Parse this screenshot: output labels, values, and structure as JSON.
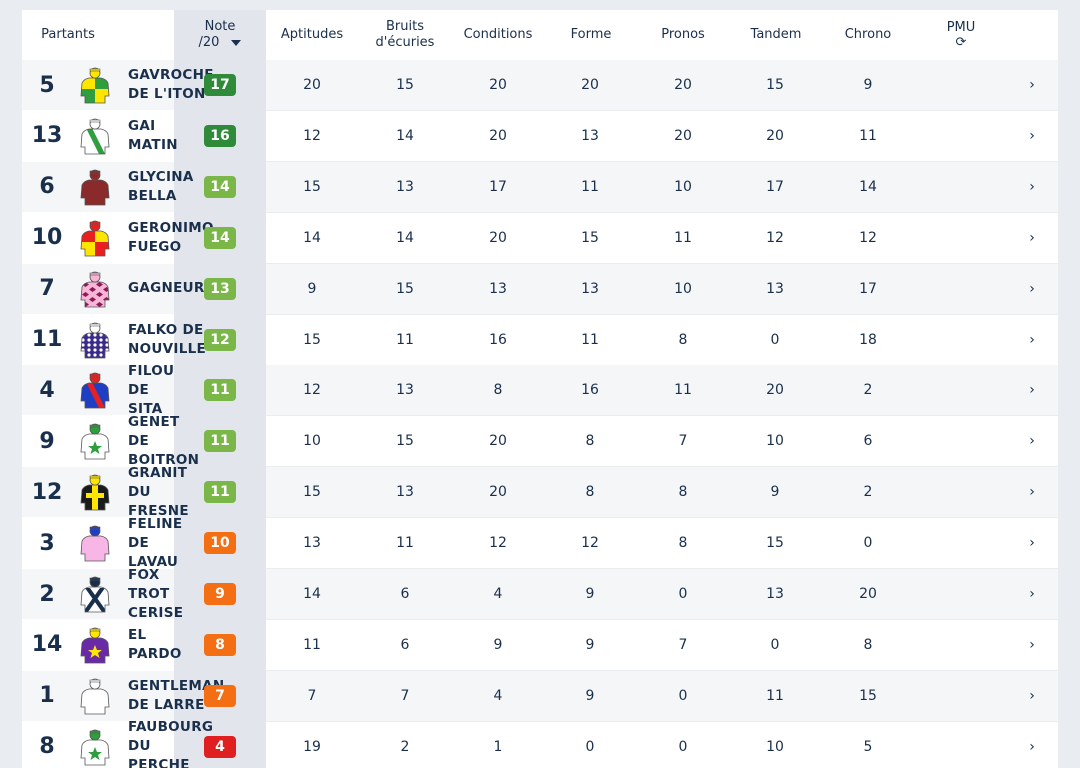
{
  "header": {
    "partants": "Partants",
    "note_line1": "Note",
    "note_line2": "/20",
    "aptitudes": "Aptitudes",
    "bruits_line1": "Bruits",
    "bruits_line2": "d'écuries",
    "conditions": "Conditions",
    "forme": "Forme",
    "pronos": "Pronos",
    "tandem": "Tandem",
    "chrono": "Chrono",
    "pmu": "PMU",
    "refresh_glyph": "⟳",
    "sort_icon": "caret-down-icon"
  },
  "colors": {
    "dark_green": "#2f8a3a",
    "light_green": "#7ab648",
    "orange": "#f46e14",
    "red": "#e02020"
  },
  "chevron_glyph": "›",
  "rows": [
    {
      "num": "5",
      "name": [
        "GAVROCHE",
        "DE L'ITON"
      ],
      "note": "17",
      "note_color": "#2f8a3a",
      "silk": {
        "type": "quarter",
        "c1": "#ffe600",
        "c2": "#2e9e3e",
        "cap": "#ffe600"
      },
      "aptitudes": "20",
      "bruits": "15",
      "conditions": "20",
      "forme": "20",
      "pronos": "20",
      "tandem": "15",
      "chrono": "9"
    },
    {
      "num": "13",
      "name": [
        "GAI",
        "MATIN"
      ],
      "note": "16",
      "note_color": "#2f8a3a",
      "silk": {
        "type": "sash",
        "c1": "#ffffff",
        "c2": "#2e9e3e",
        "cap": "#ffffff"
      },
      "aptitudes": "12",
      "bruits": "14",
      "conditions": "20",
      "forme": "13",
      "pronos": "20",
      "tandem": "20",
      "chrono": "11"
    },
    {
      "num": "6",
      "name": [
        "GLYCINA",
        "BELLA"
      ],
      "note": "14",
      "note_color": "#7ab648",
      "silk": {
        "type": "plain",
        "c1": "#8b2a2a",
        "c2": "#8b2a2a",
        "cap": "#8b2a2a"
      },
      "aptitudes": "15",
      "bruits": "13",
      "conditions": "17",
      "forme": "11",
      "pronos": "10",
      "tandem": "17",
      "chrono": "14"
    },
    {
      "num": "10",
      "name": [
        "GERONIMO",
        "FUEGO"
      ],
      "note": "14",
      "note_color": "#7ab648",
      "silk": {
        "type": "quarter",
        "c1": "#e8201f",
        "c2": "#ffe600",
        "cap": "#e8201f"
      },
      "aptitudes": "14",
      "bruits": "14",
      "conditions": "20",
      "forme": "15",
      "pronos": "11",
      "tandem": "12",
      "chrono": "12"
    },
    {
      "num": "7",
      "name": [
        "GAGNEUR"
      ],
      "note": "13",
      "note_color": "#7ab648",
      "silk": {
        "type": "diamond",
        "c1": "#f7b6d6",
        "c2": "#8b1a5a",
        "cap": "#f7b6d6"
      },
      "aptitudes": "9",
      "bruits": "15",
      "conditions": "13",
      "forme": "13",
      "pronos": "10",
      "tandem": "13",
      "chrono": "17"
    },
    {
      "num": "11",
      "name": [
        "FALKO DE",
        "NOUVILLE"
      ],
      "note": "12",
      "note_color": "#7ab648",
      "silk": {
        "type": "dots",
        "c1": "#3a2a8a",
        "c2": "#ffffff",
        "cap": "#ffffff"
      },
      "aptitudes": "15",
      "bruits": "11",
      "conditions": "16",
      "forme": "11",
      "pronos": "8",
      "tandem": "0",
      "chrono": "18"
    },
    {
      "num": "4",
      "name": [
        "FILOU",
        "DE",
        "SITA"
      ],
      "note": "11",
      "note_color": "#7ab648",
      "silk": {
        "type": "sash",
        "c1": "#1e3fc4",
        "c2": "#e8201f",
        "cap": "#e8201f"
      },
      "aptitudes": "12",
      "bruits": "13",
      "conditions": "8",
      "forme": "16",
      "pronos": "11",
      "tandem": "20",
      "chrono": "2"
    },
    {
      "num": "9",
      "name": [
        "GENET",
        "DE",
        "BOITRON"
      ],
      "note": "11",
      "note_color": "#7ab648",
      "silk": {
        "type": "star",
        "c1": "#ffffff",
        "c2": "#2e9e3e",
        "cap": "#2e9e3e"
      },
      "aptitudes": "10",
      "bruits": "15",
      "conditions": "20",
      "forme": "8",
      "pronos": "7",
      "tandem": "10",
      "chrono": "6"
    },
    {
      "num": "12",
      "name": [
        "GRANIT",
        "DU",
        "FRESNE"
      ],
      "note": "11",
      "note_color": "#7ab648",
      "silk": {
        "type": "cross",
        "c1": "#1a1a1a",
        "c2": "#ffe600",
        "cap": "#ffe600"
      },
      "aptitudes": "15",
      "bruits": "13",
      "conditions": "20",
      "forme": "8",
      "pronos": "8",
      "tandem": "9",
      "chrono": "2"
    },
    {
      "num": "3",
      "name": [
        "FELINE",
        "DE",
        "LAVAU"
      ],
      "note": "10",
      "note_color": "#f46e14",
      "silk": {
        "type": "plain",
        "c1": "#f7b6e6",
        "c2": "#f7b6e6",
        "cap": "#1e3fc4"
      },
      "aptitudes": "13",
      "bruits": "11",
      "conditions": "12",
      "forme": "12",
      "pronos": "8",
      "tandem": "15",
      "chrono": "0"
    },
    {
      "num": "2",
      "name": [
        "FOX",
        "TROT",
        "CERISE"
      ],
      "note": "9",
      "note_color": "#f46e14",
      "silk": {
        "type": "xcross",
        "c1": "#ffffff",
        "c2": "#1a2f4b",
        "cap": "#1a2f4b"
      },
      "aptitudes": "14",
      "bruits": "6",
      "conditions": "4",
      "forme": "9",
      "pronos": "0",
      "tandem": "13",
      "chrono": "20"
    },
    {
      "num": "14",
      "name": [
        "EL",
        "PARDO"
      ],
      "note": "8",
      "note_color": "#f46e14",
      "silk": {
        "type": "star",
        "c1": "#6a2aa8",
        "c2": "#ffe600",
        "cap": "#ffe600"
      },
      "aptitudes": "11",
      "bruits": "6",
      "conditions": "9",
      "forme": "9",
      "pronos": "7",
      "tandem": "0",
      "chrono": "8"
    },
    {
      "num": "1",
      "name": [
        "GENTLEMAN",
        "DE LARRE"
      ],
      "note": "7",
      "note_color": "#f46e14",
      "silk": {
        "type": "plain",
        "c1": "#ffffff",
        "c2": "#e8201f",
        "cap": "#ffffff"
      },
      "aptitudes": "7",
      "bruits": "7",
      "conditions": "4",
      "forme": "9",
      "pronos": "0",
      "tandem": "11",
      "chrono": "15"
    },
    {
      "num": "8",
      "name": [
        "FAUBOURG",
        "DU",
        "PERCHE"
      ],
      "note": "4",
      "note_color": "#e02020",
      "silk": {
        "type": "star",
        "c1": "#ffffff",
        "c2": "#2e9e3e",
        "cap": "#2e9e3e"
      },
      "aptitudes": "19",
      "bruits": "2",
      "conditions": "1",
      "forme": "0",
      "pronos": "0",
      "tandem": "10",
      "chrono": "5"
    }
  ]
}
